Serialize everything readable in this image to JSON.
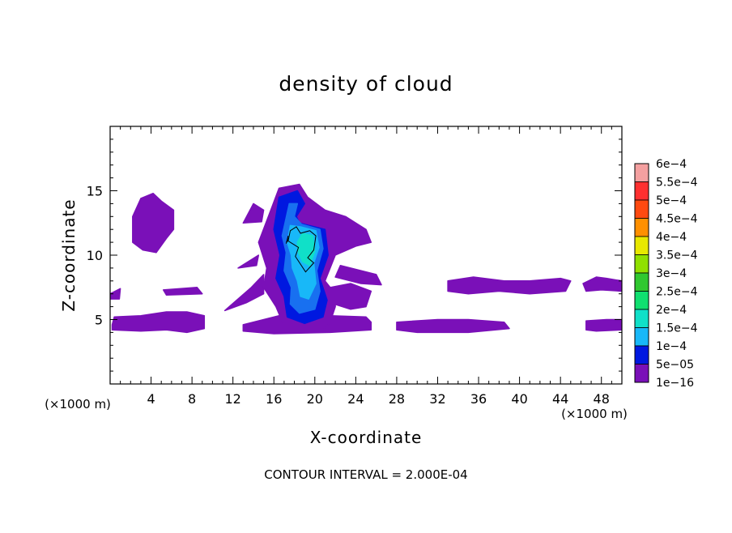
{
  "chart_data": {
    "type": "heatmap",
    "title": "density of cloud",
    "xlabel": "X-coordinate",
    "ylabel": "Z-coordinate",
    "x_unit_label_left": "(×1000 m)",
    "x_unit_label_right": "(×1000 m)",
    "footer": "CONTOUR INTERVAL = 2.000E-04",
    "xlim": [
      0,
      50
    ],
    "ylim": [
      0,
      20
    ],
    "x_ticks": [
      4,
      8,
      12,
      16,
      20,
      24,
      28,
      32,
      36,
      40,
      44,
      48
    ],
    "x_tick_labels": [
      "4",
      "8",
      "12",
      "16",
      "20",
      "24",
      "28",
      "32",
      "36",
      "40",
      "44",
      "48"
    ],
    "y_ticks": [
      5,
      10,
      15
    ],
    "y_tick_labels": [
      "5",
      "10",
      "15"
    ],
    "colorbar": {
      "levels": [
        {
          "label": "6e−4",
          "color": "#f4a0a0"
        },
        {
          "label": "5.5e−4",
          "color": "#ff3030"
        },
        {
          "label": "5e−4",
          "color": "#ff4a10"
        },
        {
          "label": "4.5e−4",
          "color": "#ff9000"
        },
        {
          "label": "4e−4",
          "color": "#e8e800"
        },
        {
          "label": "3.5e−4",
          "color": "#90e000"
        },
        {
          "label": "3e−4",
          "color": "#30c830"
        },
        {
          "label": "2.5e−4",
          "color": "#10e070"
        },
        {
          "label": "2e−4",
          "color": "#10e0c8"
        },
        {
          "label": "1.5e−4",
          "color": "#18b8f8"
        },
        {
          "label": "1e−4",
          "color": "#1870f0"
        },
        {
          "label": "5e−05",
          "color": "#0018e0"
        },
        {
          "label": "1e−16",
          "color": "#7a10b8"
        }
      ]
    },
    "regions": [
      {
        "level": "1e−16",
        "polygon": [
          [
            2.2,
            11.0
          ],
          [
            2.2,
            13.0
          ],
          [
            3.0,
            14.4
          ],
          [
            4.2,
            14.8
          ],
          [
            5.0,
            14.2
          ],
          [
            6.2,
            13.5
          ],
          [
            6.2,
            12.0
          ],
          [
            5.5,
            11.3
          ],
          [
            4.5,
            10.2
          ],
          [
            3.2,
            10.4
          ]
        ]
      },
      {
        "level": "1e−16",
        "polygon": [
          [
            0.2,
            4.6
          ],
          [
            0.4,
            5.2
          ],
          [
            3.0,
            5.3
          ],
          [
            5.5,
            5.6
          ],
          [
            7.5,
            5.6
          ],
          [
            9.2,
            5.3
          ],
          [
            9.2,
            4.3
          ],
          [
            7.5,
            4.0
          ],
          [
            5.5,
            4.2
          ],
          [
            3.0,
            4.1
          ],
          [
            0.2,
            4.2
          ]
        ]
      },
      {
        "level": "1e−16",
        "polygon": [
          [
            0.0,
            7.0
          ],
          [
            1.0,
            7.4
          ],
          [
            0.9,
            6.6
          ],
          [
            0.0,
            6.6
          ]
        ]
      },
      {
        "level": "1e−16",
        "polygon": [
          [
            5.2,
            7.3
          ],
          [
            8.5,
            7.5
          ],
          [
            9.0,
            7.0
          ],
          [
            5.5,
            6.9
          ]
        ]
      },
      {
        "level": "1e−16",
        "polygon": [
          [
            11.2,
            5.7
          ],
          [
            13.8,
            7.5
          ],
          [
            15.0,
            8.5
          ],
          [
            15.0,
            7.0
          ],
          [
            13.3,
            6.3
          ]
        ]
      },
      {
        "level": "1e−16",
        "polygon": [
          [
            13.0,
            12.5
          ],
          [
            14.0,
            14.0
          ],
          [
            15.0,
            13.5
          ],
          [
            14.8,
            12.6
          ]
        ]
      },
      {
        "level": "1e−16",
        "polygon": [
          [
            12.5,
            9.0
          ],
          [
            14.5,
            10.0
          ],
          [
            14.3,
            9.2
          ]
        ]
      },
      {
        "level": "1e−16",
        "polygon": [
          [
            13.0,
            4.6
          ],
          [
            16.5,
            5.3
          ],
          [
            21.5,
            5.3
          ],
          [
            25.0,
            5.2
          ],
          [
            25.5,
            4.8
          ],
          [
            25.5,
            4.2
          ],
          [
            21.5,
            4.0
          ],
          [
            16.0,
            3.9
          ],
          [
            13.0,
            4.1
          ]
        ]
      },
      {
        "level": "1e−16",
        "polygon": [
          [
            15.7,
            13.5
          ],
          [
            16.5,
            15.2
          ],
          [
            18.5,
            15.5
          ],
          [
            19.3,
            14.5
          ],
          [
            21.0,
            13.5
          ],
          [
            23.0,
            13.0
          ],
          [
            25.0,
            12.0
          ],
          [
            25.5,
            11.0
          ],
          [
            24.0,
            10.7
          ],
          [
            22.0,
            10.0
          ],
          [
            21.0,
            8.0
          ],
          [
            22.0,
            7.0
          ],
          [
            22.0,
            6.0
          ],
          [
            21.5,
            4.8
          ],
          [
            20.8,
            4.2
          ],
          [
            17.0,
            4.5
          ],
          [
            16.2,
            6.0
          ],
          [
            15.0,
            7.5
          ],
          [
            15.3,
            9.0
          ],
          [
            14.5,
            11.0
          ]
        ]
      },
      {
        "level": "1e−16",
        "polygon": [
          [
            21.5,
            7.5
          ],
          [
            23.5,
            7.8
          ],
          [
            25.5,
            7.2
          ],
          [
            25.0,
            6.0
          ],
          [
            23.5,
            5.8
          ],
          [
            21.5,
            6.3
          ]
        ]
      },
      {
        "level": "1e−16",
        "polygon": [
          [
            22.5,
            9.2
          ],
          [
            26.0,
            8.5
          ],
          [
            26.5,
            7.7
          ],
          [
            24.5,
            7.8
          ],
          [
            22.0,
            8.3
          ]
        ]
      },
      {
        "level": "1e−16",
        "polygon": [
          [
            28.0,
            4.8
          ],
          [
            32.0,
            5.0
          ],
          [
            35.0,
            5.0
          ],
          [
            38.5,
            4.8
          ],
          [
            39.0,
            4.3
          ],
          [
            35.0,
            4.0
          ],
          [
            30.0,
            4.0
          ],
          [
            28.0,
            4.2
          ]
        ]
      },
      {
        "level": "1e−16",
        "polygon": [
          [
            33.0,
            8.0
          ],
          [
            35.5,
            8.3
          ],
          [
            38.5,
            8.0
          ],
          [
            41.0,
            8.0
          ],
          [
            44.0,
            8.2
          ],
          [
            45.0,
            8.0
          ],
          [
            44.5,
            7.2
          ],
          [
            41.0,
            7.0
          ],
          [
            38.0,
            7.2
          ],
          [
            35.0,
            7.0
          ],
          [
            33.0,
            7.2
          ]
        ]
      },
      {
        "level": "1e−16",
        "polygon": [
          [
            46.2,
            7.8
          ],
          [
            47.5,
            8.3
          ],
          [
            48.5,
            8.2
          ],
          [
            50.0,
            8.0
          ],
          [
            50.0,
            7.2
          ],
          [
            48.0,
            7.3
          ],
          [
            46.5,
            7.2
          ]
        ]
      },
      {
        "level": "1e−16",
        "polygon": [
          [
            46.5,
            4.9
          ],
          [
            48.5,
            5.0
          ],
          [
            50.0,
            5.0
          ],
          [
            50.0,
            4.2
          ],
          [
            47.5,
            4.1
          ],
          [
            46.5,
            4.2
          ]
        ]
      },
      {
        "level": "5e−05",
        "polygon": [
          [
            16.0,
            12.0
          ],
          [
            16.5,
            14.5
          ],
          [
            18.3,
            15.0
          ],
          [
            19.0,
            14.0
          ],
          [
            18.2,
            13.0
          ],
          [
            18.5,
            12.5
          ],
          [
            21.0,
            12.0
          ],
          [
            21.3,
            10.0
          ],
          [
            20.5,
            8.2
          ],
          [
            21.2,
            6.5
          ],
          [
            20.8,
            5.2
          ],
          [
            19.0,
            4.7
          ],
          [
            17.3,
            5.2
          ],
          [
            17.0,
            6.8
          ],
          [
            16.2,
            8.2
          ],
          [
            16.6,
            10.0
          ]
        ]
      },
      {
        "level": "1e−4",
        "polygon": [
          [
            16.8,
            11.5
          ],
          [
            17.5,
            14.0
          ],
          [
            18.3,
            14.0
          ],
          [
            18.0,
            13.0
          ],
          [
            18.7,
            12.4
          ],
          [
            20.5,
            12.0
          ],
          [
            20.8,
            10.5
          ],
          [
            20.2,
            8.8
          ],
          [
            20.5,
            7.2
          ],
          [
            20.0,
            5.8
          ],
          [
            18.5,
            5.5
          ],
          [
            17.6,
            6.2
          ],
          [
            17.7,
            7.5
          ],
          [
            17.0,
            8.8
          ],
          [
            17.2,
            10.2
          ]
        ]
      },
      {
        "level": "1.5e−4",
        "polygon": [
          [
            17.3,
            11.0
          ],
          [
            17.6,
            12.3
          ],
          [
            18.6,
            12.2
          ],
          [
            20.1,
            11.9
          ],
          [
            20.4,
            10.6
          ],
          [
            19.9,
            9.4
          ],
          [
            20.1,
            7.8
          ],
          [
            19.4,
            6.6
          ],
          [
            18.6,
            6.8
          ],
          [
            18.3,
            8.0
          ],
          [
            17.8,
            9.0
          ],
          [
            17.7,
            10.0
          ]
        ]
      },
      {
        "level": "2e−4",
        "polygon": [
          [
            18.3,
            11.0
          ],
          [
            18.8,
            11.7
          ],
          [
            19.8,
            11.5
          ],
          [
            20.0,
            10.3
          ],
          [
            19.5,
            9.2
          ],
          [
            18.8,
            9.5
          ],
          [
            18.4,
            10.2
          ]
        ]
      }
    ],
    "contour_lines": [
      [
        [
          17.4,
          11.1
        ],
        [
          17.6,
          11.9
        ],
        [
          18.2,
          12.2
        ],
        [
          18.6,
          11.7
        ],
        [
          19.5,
          11.9
        ],
        [
          20.1,
          11.5
        ],
        [
          19.9,
          10.4
        ],
        [
          19.3,
          9.8
        ],
        [
          19.9,
          9.4
        ],
        [
          19.1,
          8.7
        ],
        [
          18.6,
          9.3
        ],
        [
          18.1,
          9.9
        ],
        [
          18.4,
          10.6
        ],
        [
          17.8,
          10.9
        ],
        [
          17.4,
          11.1
        ]
      ],
      [
        [
          17.2,
          10.9
        ],
        [
          17.4,
          11.5
        ],
        [
          17.3,
          11.0
        ]
      ]
    ]
  }
}
